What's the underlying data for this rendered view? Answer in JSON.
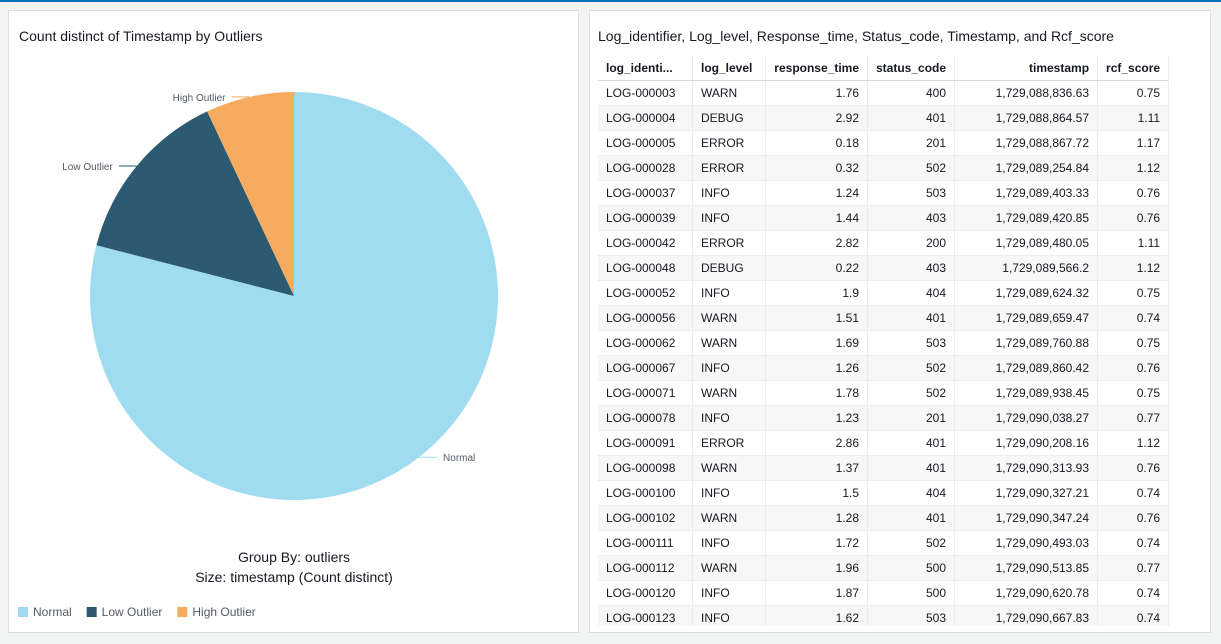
{
  "chart_data": {
    "type": "pie",
    "title": "Count distinct of Timestamp by Outliers",
    "categories": [
      "Normal",
      "Low Outlier",
      "High Outlier"
    ],
    "values": [
      79,
      14,
      7
    ],
    "colors": [
      "#a0dcef",
      "#2b5a72",
      "#f7ab5e"
    ],
    "caption": [
      "Group By: outliers",
      "Size: timestamp (Count distinct)"
    ],
    "legend": "bottom-left"
  },
  "table": {
    "title": "Log_identifier, Log_level, Response_time, Status_code, Timestamp, and Rcf_score",
    "columns": [
      "log_identi...",
      "log_level",
      "response_time",
      "status_code",
      "timestamp",
      "rcf_score"
    ],
    "rows": [
      [
        "LOG-000003",
        "WARN",
        "1.76",
        "400",
        "1,729,088,836.63",
        "0.75"
      ],
      [
        "LOG-000004",
        "DEBUG",
        "2.92",
        "401",
        "1,729,088,864.57",
        "1.11"
      ],
      [
        "LOG-000005",
        "ERROR",
        "0.18",
        "201",
        "1,729,088,867.72",
        "1.17"
      ],
      [
        "LOG-000028",
        "ERROR",
        "0.32",
        "502",
        "1,729,089,254.84",
        "1.12"
      ],
      [
        "LOG-000037",
        "INFO",
        "1.24",
        "503",
        "1,729,089,403.33",
        "0.76"
      ],
      [
        "LOG-000039",
        "INFO",
        "1.44",
        "403",
        "1,729,089,420.85",
        "0.76"
      ],
      [
        "LOG-000042",
        "ERROR",
        "2.82",
        "200",
        "1,729,089,480.05",
        "1.11"
      ],
      [
        "LOG-000048",
        "DEBUG",
        "0.22",
        "403",
        "1,729,089,566.2",
        "1.12"
      ],
      [
        "LOG-000052",
        "INFO",
        "1.9",
        "404",
        "1,729,089,624.32",
        "0.75"
      ],
      [
        "LOG-000056",
        "WARN",
        "1.51",
        "401",
        "1,729,089,659.47",
        "0.74"
      ],
      [
        "LOG-000062",
        "WARN",
        "1.69",
        "503",
        "1,729,089,760.88",
        "0.75"
      ],
      [
        "LOG-000067",
        "INFO",
        "1.26",
        "502",
        "1,729,089,860.42",
        "0.76"
      ],
      [
        "LOG-000071",
        "WARN",
        "1.78",
        "502",
        "1,729,089,938.45",
        "0.75"
      ],
      [
        "LOG-000078",
        "INFO",
        "1.23",
        "201",
        "1,729,090,038.27",
        "0.77"
      ],
      [
        "LOG-000091",
        "ERROR",
        "2.86",
        "401",
        "1,729,090,208.16",
        "1.12"
      ],
      [
        "LOG-000098",
        "WARN",
        "1.37",
        "401",
        "1,729,090,313.93",
        "0.76"
      ],
      [
        "LOG-000100",
        "INFO",
        "1.5",
        "404",
        "1,729,090,327.21",
        "0.74"
      ],
      [
        "LOG-000102",
        "WARN",
        "1.28",
        "401",
        "1,729,090,347.24",
        "0.76"
      ],
      [
        "LOG-000111",
        "INFO",
        "1.72",
        "502",
        "1,729,090,493.03",
        "0.74"
      ],
      [
        "LOG-000112",
        "WARN",
        "1.96",
        "500",
        "1,729,090,513.85",
        "0.77"
      ],
      [
        "LOG-000120",
        "INFO",
        "1.87",
        "500",
        "1,729,090,620.78",
        "0.74"
      ],
      [
        "LOG-000123",
        "INFO",
        "1.62",
        "503",
        "1,729,090,667.83",
        "0.74"
      ]
    ]
  }
}
